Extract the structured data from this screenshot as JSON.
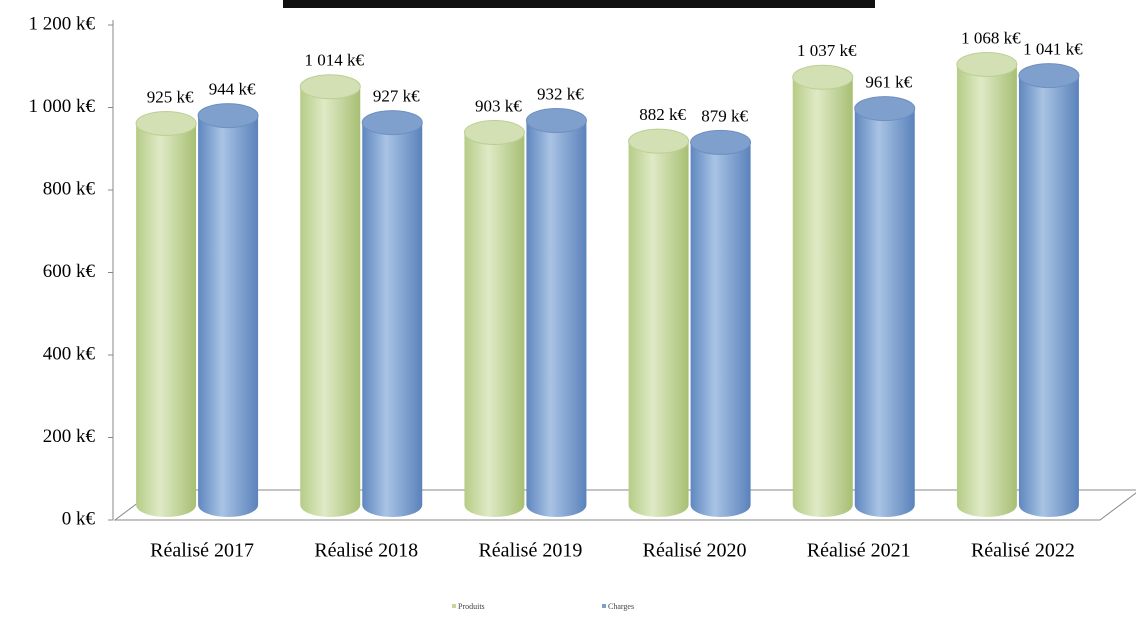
{
  "chart_data": {
    "type": "bar",
    "categories": [
      "Réalisé 2017",
      "Réalisé 2018",
      "Réalisé 2019",
      "Réalisé 2020",
      "Réalisé 2021",
      "Réalisé 2022"
    ],
    "series": [
      {
        "name": "Produits",
        "color": "#c3d69b",
        "values": [
          925,
          1014,
          903,
          882,
          1037,
          1068
        ],
        "value_labels": [
          "925 k€",
          "1 014 k€",
          "903 k€",
          "882 k€",
          "1 037 k€",
          "1 068 k€"
        ]
      },
      {
        "name": "Charges",
        "color": "#7a9fd0",
        "values": [
          944,
          927,
          932,
          879,
          961,
          1041
        ],
        "value_labels": [
          "944 k€",
          "927 k€",
          "932 k€",
          "879 k€",
          "961 k€",
          "1 041 k€"
        ]
      }
    ],
    "ylim": [
      0,
      1200
    ],
    "yticks": [
      {
        "value": 0,
        "label": "0 k€"
      },
      {
        "value": 200,
        "label": "200 k€"
      },
      {
        "value": 400,
        "label": "400 k€"
      },
      {
        "value": 600,
        "label": "600 k€"
      },
      {
        "value": 800,
        "label": "800 k€"
      },
      {
        "value": 1000,
        "label": "1 000 k€"
      },
      {
        "value": 1200,
        "label": "1 200 k€"
      }
    ],
    "legend": "bottom"
  }
}
